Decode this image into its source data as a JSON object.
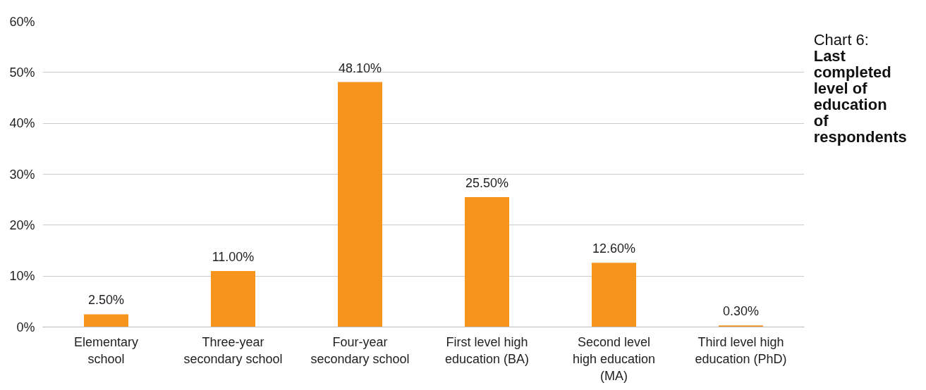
{
  "chart_data": {
    "type": "bar",
    "title": "Chart 6:",
    "subtitle": "Last completed level of education of respondents",
    "categories": [
      "Elementary school",
      "Three-year secondary school",
      "Four-year secondary school",
      "First level high education (BA)",
      "Second level high education (MA)",
      "Third level high education (PhD)"
    ],
    "values": [
      2.5,
      11.0,
      48.1,
      25.5,
      12.6,
      0.3
    ],
    "value_labels": [
      "2.50%",
      "11.00%",
      "48.10%",
      "25.50%",
      "12.60%",
      "0.30%"
    ],
    "color": "#f7941d",
    "ylim": [
      0,
      60
    ],
    "yticks": [
      {
        "value": 0,
        "label": "0%"
      },
      {
        "value": 10,
        "label": "10%"
      },
      {
        "value": 20,
        "label": "20%"
      },
      {
        "value": 30,
        "label": "30%"
      },
      {
        "value": 40,
        "label": "40%"
      },
      {
        "value": 50,
        "label": "50%"
      },
      {
        "value": 60,
        "label": "60%"
      }
    ],
    "grid": "y"
  }
}
